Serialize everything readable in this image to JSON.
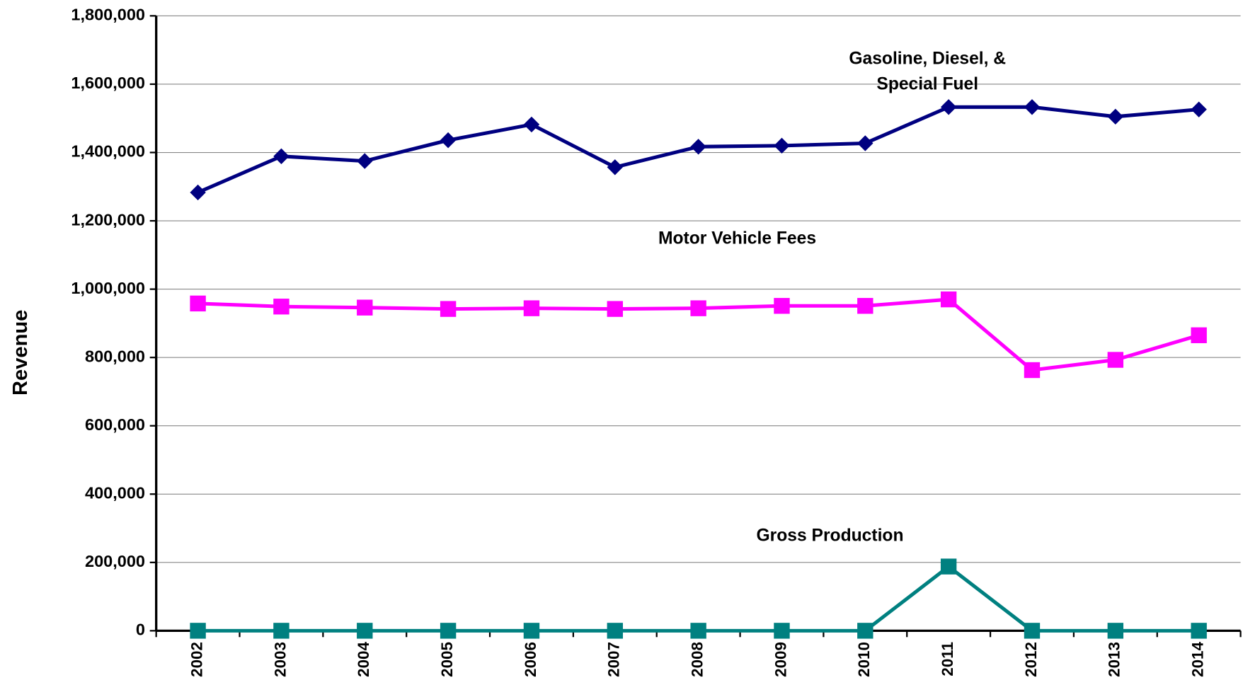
{
  "chart_data": {
    "type": "line",
    "y_label": "Revenue",
    "categories": [
      "2002",
      "2003",
      "2004",
      "2005",
      "2006",
      "2007",
      "2008",
      "2009",
      "2010",
      "2011",
      "2012",
      "2013",
      "2014"
    ],
    "series": [
      {
        "color": "#000080",
        "marker": "diamond",
        "values": [
          1283000,
          1389000,
          1375000,
          1436000,
          1482000,
          1357000,
          1417000,
          1420000,
          1427000,
          1533000,
          1533000,
          1505000,
          1526000
        ]
      },
      {
        "color": "#ff00ff",
        "marker": "square",
        "values": [
          958000,
          949000,
          946000,
          942000,
          944000,
          942000,
          944000,
          951000,
          951000,
          970000,
          763000,
          793000,
          865000
        ]
      },
      {
        "color": "#008080",
        "marker": "square",
        "values": [
          0,
          0,
          0,
          0,
          0,
          0,
          0,
          0,
          0,
          188000,
          0,
          0,
          0
        ]
      }
    ],
    "annotations": [
      "Gasoline, Diesel, &",
      "Special Fuel",
      "Motor Vehicle Fees",
      "Gross Production"
    ],
    "ylim": [
      0,
      1800000
    ],
    "yticks": [
      0,
      {
        "value": 200000,
        "label": "200,000"
      },
      {
        "value": 400000,
        "label": "400,000"
      },
      {
        "value": 600000,
        "label": "600,000"
      },
      {
        "value": 800000,
        "label": "800,000"
      },
      {
        "value": 1000000,
        "label": "1,000,000"
      },
      {
        "value": 1200000,
        "label": "1,200,000"
      },
      {
        "value": 1400000,
        "label": "1,400,000"
      },
      {
        "value": 1600000,
        "label": "1,600,000"
      },
      {
        "value": 1800000,
        "label": "1,800,000"
      }
    ],
    "grid": true
  }
}
